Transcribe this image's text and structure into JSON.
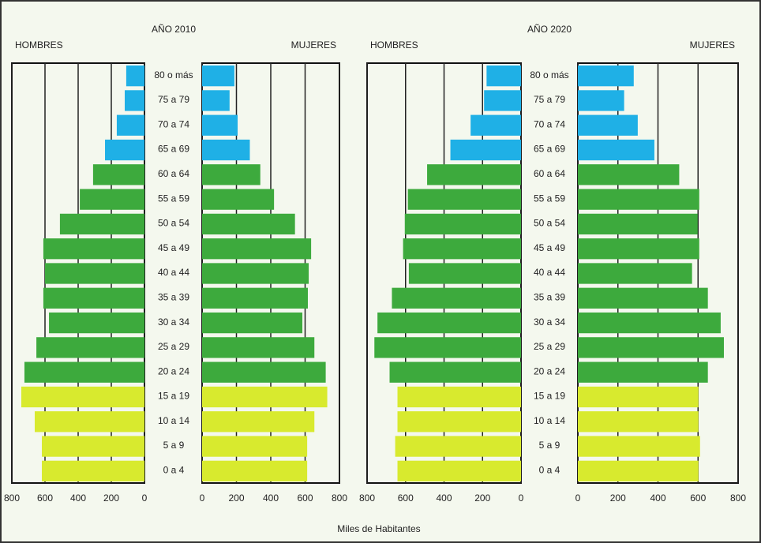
{
  "x_label": "Miles de Habitantes",
  "chart_data": [
    {
      "type": "pyramid",
      "title": "AÑO 2010",
      "categories": [
        "80 o más",
        "75 a 79",
        "70 a 74",
        "65 a 69",
        "60 a 64",
        "55 a 59",
        "50 a 54",
        "45 a 49",
        "40 a 44",
        "35 a 39",
        "30 a 34",
        "25 a 29",
        "20 a 24",
        "15 a 19",
        "10 a 14",
        "5 a 9",
        "0 a 4"
      ],
      "category_colors": [
        "#1fb0e6",
        "#1fb0e6",
        "#1fb0e6",
        "#1fb0e6",
        "#3daa3d",
        "#3daa3d",
        "#3daa3d",
        "#3daa3d",
        "#3daa3d",
        "#3daa3d",
        "#3daa3d",
        "#3daa3d",
        "#3daa3d",
        "#d8ea2e",
        "#d8ea2e",
        "#d8ea2e",
        "#d8ea2e"
      ],
      "series": [
        {
          "name": "HOMBRES",
          "values": [
            110,
            119,
            167,
            238,
            310,
            390,
            510,
            610,
            600,
            610,
            576,
            652,
            724,
            743,
            662,
            619,
            619
          ]
        },
        {
          "name": "MUJERES",
          "values": [
            188,
            160,
            207,
            278,
            339,
            419,
            541,
            635,
            621,
            616,
            584,
            654,
            720,
            729,
            654,
            612,
            612
          ]
        }
      ],
      "xlim": [
        0,
        800
      ],
      "xticks": [
        0,
        200,
        400,
        600,
        800
      ],
      "grid": true
    },
    {
      "type": "pyramid",
      "title": "AÑO 2020",
      "categories": [
        "80 o más",
        "75 a 79",
        "70 a 74",
        "65 a 69",
        "60 a 64",
        "55 a 59",
        "50 a 54",
        "45 a 49",
        "40 a 44",
        "35 a 39",
        "30 a 34",
        "25 a 29",
        "20 a 24",
        "15 a 19",
        "10 a 14",
        "5 a 9",
        "0 a 4"
      ],
      "category_colors": [
        "#1fb0e6",
        "#1fb0e6",
        "#1fb0e6",
        "#1fb0e6",
        "#3daa3d",
        "#3daa3d",
        "#3daa3d",
        "#3daa3d",
        "#3daa3d",
        "#3daa3d",
        "#3daa3d",
        "#3daa3d",
        "#3daa3d",
        "#d8ea2e",
        "#d8ea2e",
        "#d8ea2e",
        "#d8ea2e"
      ],
      "series": [
        {
          "name": "HOMBRES",
          "values": [
            179,
            192,
            262,
            367,
            488,
            588,
            604,
            613,
            583,
            671,
            746,
            762,
            683,
            642,
            642,
            654,
            642
          ]
        },
        {
          "name": "MUJERES",
          "values": [
            279,
            231,
            299,
            382,
            506,
            606,
            598,
            606,
            570,
            649,
            713,
            729,
            649,
            602,
            602,
            610,
            602
          ]
        }
      ],
      "xlim": [
        0,
        800
      ],
      "xticks": [
        0,
        200,
        400,
        600,
        800
      ],
      "grid": true
    }
  ]
}
